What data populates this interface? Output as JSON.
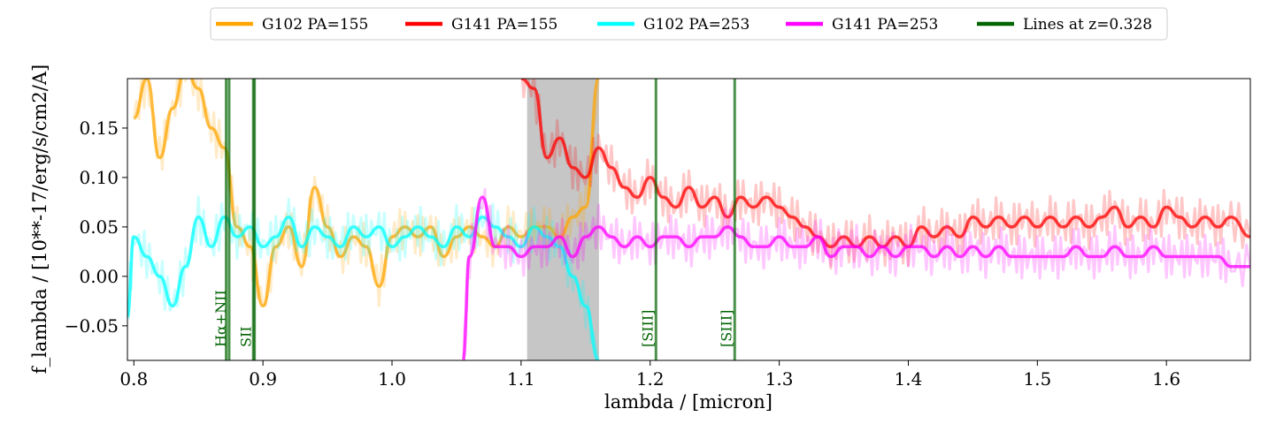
{
  "chart_data": {
    "type": "line",
    "title": "",
    "xlabel": "lambda / [micron]",
    "ylabel": "f_lambda / [10**-17/erg/s/cm2/A]",
    "xlim": [
      0.795,
      1.665
    ],
    "ylim": [
      -0.085,
      0.2
    ],
    "xticks": [
      0.8,
      0.9,
      1.0,
      1.1,
      1.2,
      1.3,
      1.4,
      1.5,
      1.6
    ],
    "xtick_labels": [
      "0.8",
      "0.9",
      "1.0",
      "1.1",
      "1.2",
      "1.3",
      "1.4",
      "1.5",
      "1.6"
    ],
    "yticks": [
      -0.05,
      0.0,
      0.05,
      0.1,
      0.15
    ],
    "ytick_labels": [
      "−0.05",
      "0.00",
      "0.05",
      "0.10",
      "0.15"
    ],
    "grid": false,
    "legend_position": "top-center",
    "shaded_region": {
      "x": [
        1.105,
        1.16
      ],
      "color": "#999999"
    },
    "series": [
      {
        "name": "G102 PA=155",
        "color": "#ffa500",
        "x": [
          0.8,
          0.81,
          0.82,
          0.83,
          0.84,
          0.85,
          0.86,
          0.87,
          0.88,
          0.89,
          0.9,
          0.91,
          0.92,
          0.93,
          0.94,
          0.95,
          0.96,
          0.97,
          0.98,
          0.99,
          1.0,
          1.01,
          1.02,
          1.03,
          1.04,
          1.05,
          1.06,
          1.07,
          1.08,
          1.09,
          1.1,
          1.11,
          1.12,
          1.13,
          1.14,
          1.15,
          1.16
        ],
        "y": [
          0.16,
          0.2,
          0.12,
          0.17,
          0.21,
          0.19,
          0.15,
          0.13,
          0.05,
          0.03,
          -0.03,
          0.03,
          0.05,
          0.01,
          0.09,
          0.05,
          0.02,
          0.04,
          0.03,
          -0.01,
          0.04,
          0.05,
          0.04,
          0.05,
          0.02,
          0.04,
          0.05,
          0.04,
          0.03,
          0.05,
          0.04,
          0.05,
          0.05,
          0.04,
          0.06,
          0.07,
          0.2
        ]
      },
      {
        "name": "G141 PA=155",
        "color": "#ff0000",
        "x": [
          1.1,
          1.11,
          1.12,
          1.13,
          1.14,
          1.15,
          1.16,
          1.17,
          1.18,
          1.19,
          1.2,
          1.21,
          1.22,
          1.23,
          1.24,
          1.25,
          1.26,
          1.27,
          1.28,
          1.29,
          1.3,
          1.31,
          1.32,
          1.33,
          1.34,
          1.35,
          1.36,
          1.37,
          1.38,
          1.39,
          1.4,
          1.41,
          1.42,
          1.43,
          1.44,
          1.45,
          1.46,
          1.47,
          1.48,
          1.49,
          1.5,
          1.51,
          1.52,
          1.53,
          1.54,
          1.55,
          1.56,
          1.57,
          1.58,
          1.59,
          1.6,
          1.61,
          1.62,
          1.63,
          1.64,
          1.65,
          1.665
        ],
        "y": [
          0.2,
          0.19,
          0.12,
          0.14,
          0.11,
          0.1,
          0.13,
          0.11,
          0.09,
          0.08,
          0.1,
          0.08,
          0.07,
          0.09,
          0.07,
          0.08,
          0.06,
          0.08,
          0.07,
          0.08,
          0.07,
          0.06,
          0.05,
          0.04,
          0.03,
          0.04,
          0.03,
          0.04,
          0.03,
          0.04,
          0.03,
          0.05,
          0.04,
          0.05,
          0.04,
          0.06,
          0.05,
          0.06,
          0.05,
          0.06,
          0.05,
          0.06,
          0.05,
          0.06,
          0.05,
          0.06,
          0.07,
          0.05,
          0.06,
          0.05,
          0.07,
          0.06,
          0.05,
          0.06,
          0.05,
          0.06,
          0.04
        ]
      },
      {
        "name": "G102 PA=253",
        "color": "#00ffff",
        "x": [
          0.795,
          0.8,
          0.81,
          0.82,
          0.83,
          0.84,
          0.85,
          0.86,
          0.87,
          0.88,
          0.89,
          0.9,
          0.91,
          0.92,
          0.93,
          0.94,
          0.95,
          0.96,
          0.97,
          0.98,
          0.99,
          1.0,
          1.01,
          1.02,
          1.03,
          1.04,
          1.05,
          1.06,
          1.07,
          1.08,
          1.09,
          1.1,
          1.11,
          1.12,
          1.13,
          1.14,
          1.15,
          1.16
        ],
        "y": [
          -0.04,
          0.04,
          0.02,
          0.0,
          -0.03,
          0.01,
          0.06,
          0.03,
          0.06,
          0.04,
          0.05,
          0.03,
          0.04,
          0.06,
          0.03,
          0.05,
          0.04,
          0.03,
          0.05,
          0.04,
          0.05,
          0.03,
          0.04,
          0.05,
          0.04,
          0.03,
          0.05,
          0.04,
          0.06,
          0.05,
          0.04,
          0.03,
          0.05,
          0.04,
          0.03,
          0.0,
          -0.03,
          -0.085
        ]
      },
      {
        "name": "G141 PA=253",
        "color": "#ff00ff",
        "x": [
          1.055,
          1.06,
          1.07,
          1.08,
          1.09,
          1.1,
          1.11,
          1.12,
          1.13,
          1.14,
          1.15,
          1.16,
          1.17,
          1.18,
          1.19,
          1.2,
          1.21,
          1.22,
          1.23,
          1.24,
          1.25,
          1.26,
          1.27,
          1.28,
          1.29,
          1.3,
          1.31,
          1.32,
          1.33,
          1.34,
          1.35,
          1.36,
          1.37,
          1.38,
          1.39,
          1.4,
          1.41,
          1.42,
          1.43,
          1.44,
          1.45,
          1.46,
          1.47,
          1.48,
          1.49,
          1.5,
          1.51,
          1.52,
          1.53,
          1.54,
          1.55,
          1.56,
          1.57,
          1.58,
          1.59,
          1.6,
          1.61,
          1.62,
          1.63,
          1.64,
          1.65,
          1.665
        ],
        "y": [
          -0.085,
          0.02,
          0.08,
          0.03,
          0.03,
          0.02,
          0.03,
          0.03,
          0.04,
          0.02,
          0.04,
          0.05,
          0.04,
          0.03,
          0.04,
          0.03,
          0.04,
          0.04,
          0.03,
          0.04,
          0.04,
          0.05,
          0.04,
          0.03,
          0.03,
          0.04,
          0.03,
          0.03,
          0.04,
          0.02,
          0.03,
          0.03,
          0.02,
          0.03,
          0.02,
          0.03,
          0.03,
          0.02,
          0.03,
          0.02,
          0.03,
          0.02,
          0.03,
          0.02,
          0.02,
          0.02,
          0.02,
          0.02,
          0.03,
          0.02,
          0.02,
          0.03,
          0.02,
          0.02,
          0.03,
          0.02,
          0.02,
          0.02,
          0.02,
          0.02,
          0.01,
          0.01
        ]
      }
    ],
    "emission_lines": {
      "legend_name": "Lines at z=0.328",
      "color": "#006400",
      "lines": [
        {
          "x": 0.8715,
          "label": ""
        },
        {
          "x": 0.8738,
          "label": "Hα+NII"
        },
        {
          "x": 0.8925,
          "label": ""
        },
        {
          "x": 0.8935,
          "label": "SII"
        },
        {
          "x": 1.2045,
          "label": "[SIII]"
        },
        {
          "x": 1.2655,
          "label": "[SIII]"
        }
      ]
    }
  }
}
